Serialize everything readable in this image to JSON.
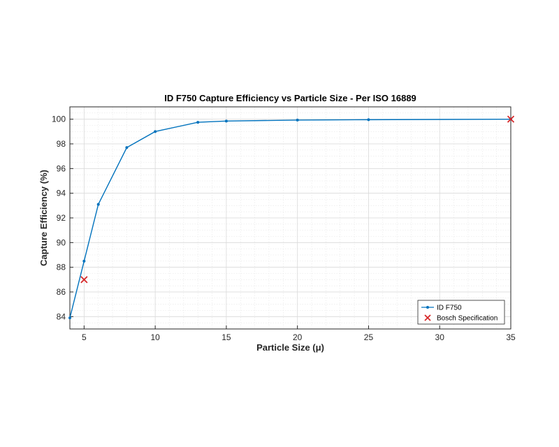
{
  "chart_data": {
    "type": "line",
    "title": "ID F750 Capture Efficiency vs Particle Size - Per ISO 16889",
    "xlabel": "Particle Size (μ)",
    "ylabel": "Capture Efficiency (%)",
    "xlim": [
      4,
      35
    ],
    "ylim": [
      83,
      101
    ],
    "xticks": [
      5,
      10,
      15,
      20,
      25,
      30,
      35
    ],
    "yticks": [
      84,
      86,
      88,
      90,
      92,
      94,
      96,
      98,
      100
    ],
    "grid": true,
    "minor_grid": true,
    "legend_position": "bottom-right",
    "series": [
      {
        "name": "ID F750",
        "kind": "line-with-markers",
        "color": "#0072BD",
        "x": [
          4,
          5,
          6,
          8,
          10,
          13,
          15,
          20,
          25,
          35
        ],
        "y": [
          83.9,
          88.5,
          93.1,
          97.7,
          99.0,
          99.75,
          99.85,
          99.93,
          99.96,
          100.0
        ]
      },
      {
        "name": "Bosch Specification",
        "kind": "x-markers",
        "color": "#D62728",
        "x": [
          5,
          35
        ],
        "y": [
          87.0,
          100.0
        ]
      }
    ]
  }
}
